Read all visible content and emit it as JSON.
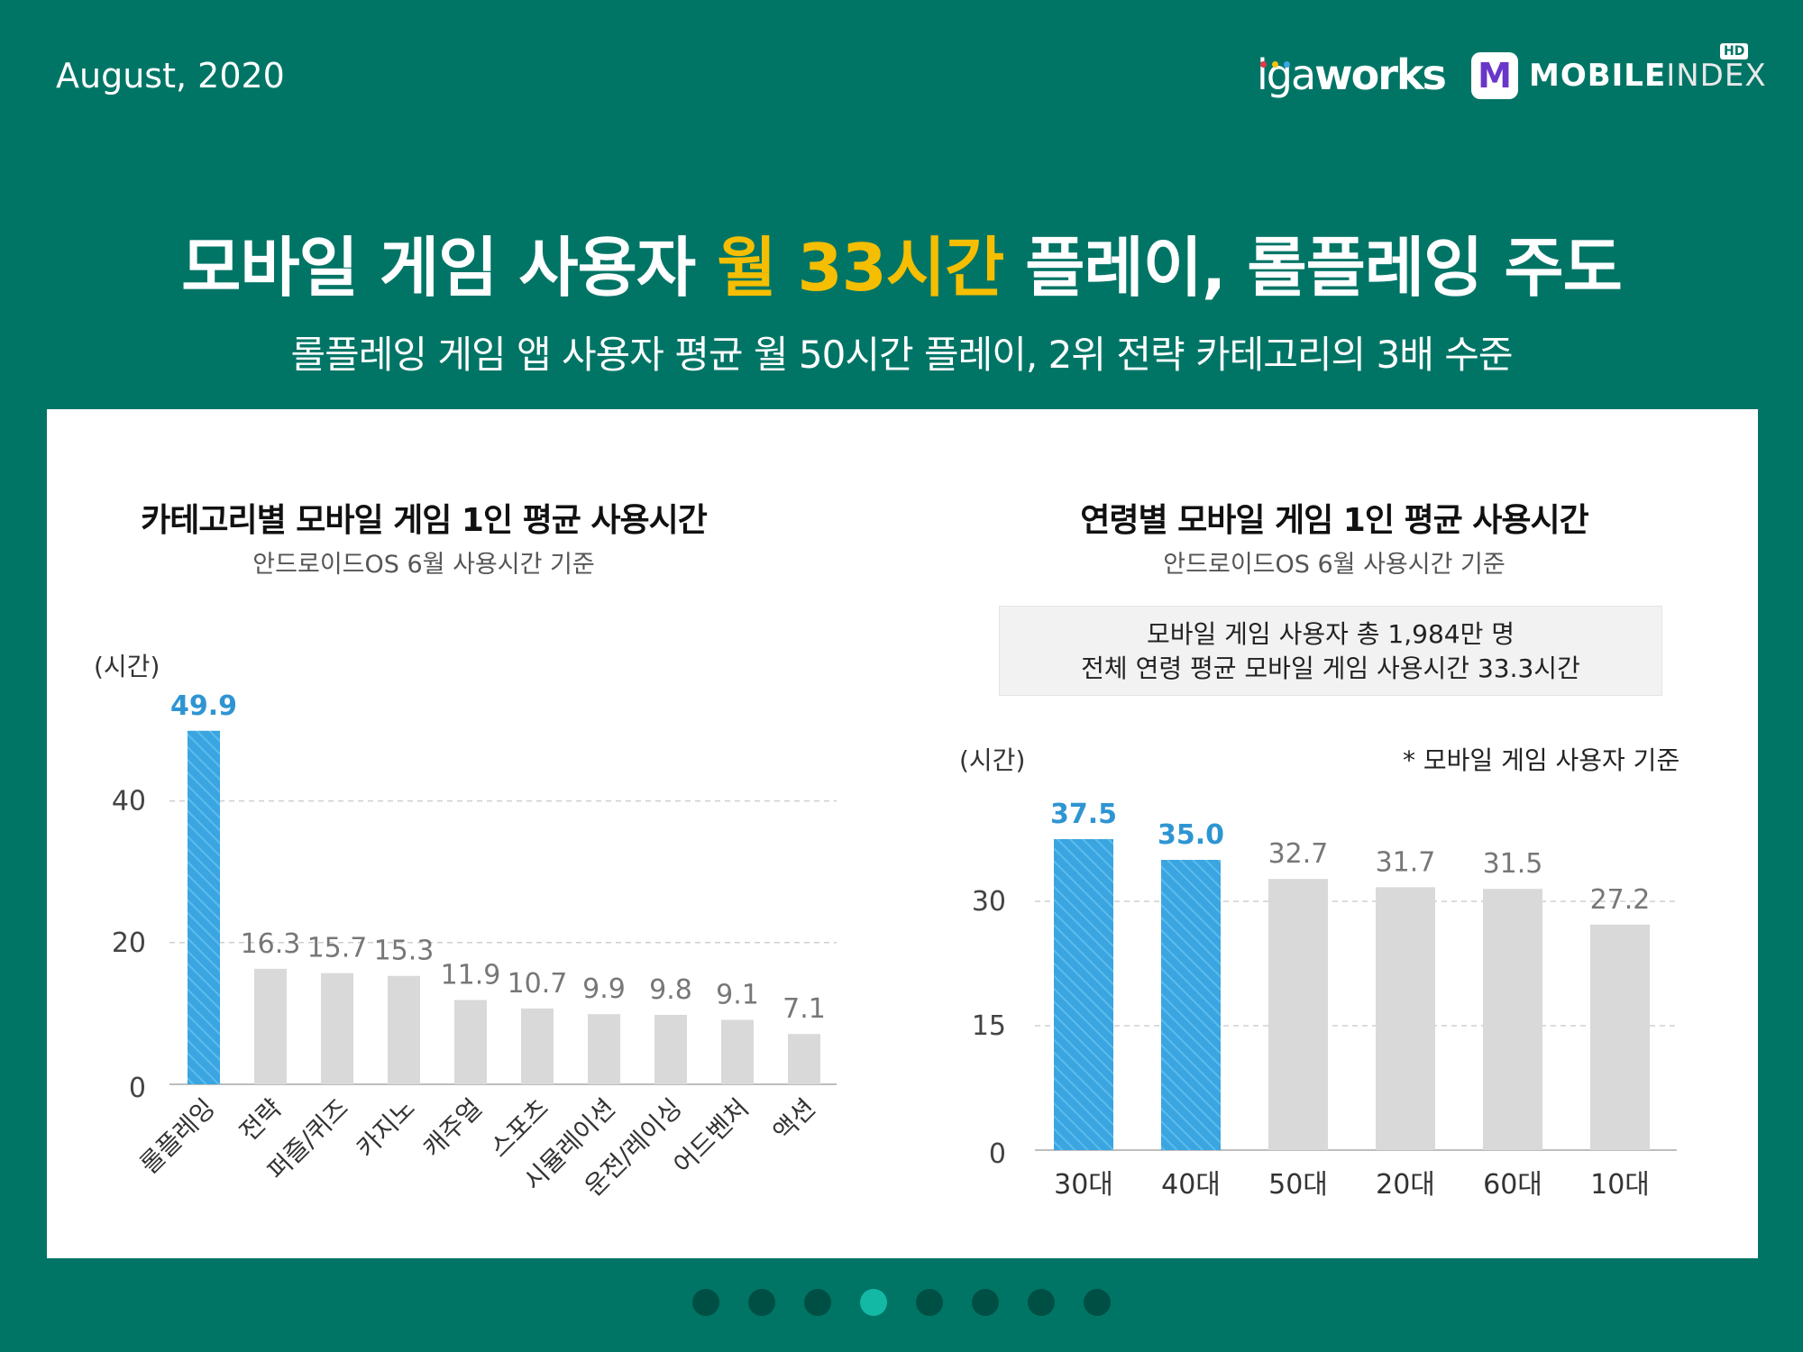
{
  "header": {
    "date": "August, 2020",
    "logo_iga_prefix": "iga",
    "logo_iga_bold": "works",
    "logo_mobile": "MOBILE",
    "logo_index": "INDEX",
    "logo_hd": "HD",
    "logo_m": "M"
  },
  "headline": {
    "title_pre": "모바일 게임 사용자 ",
    "title_highlight": "월 33시간",
    "title_post": " 플레이, 롤플레잉 주도",
    "subtitle": "롤플레잉 게임 앱 사용자 평균 월 50시간 플레이, 2위 전략 카테고리의 3배 수준"
  },
  "colors": {
    "background": "#007566",
    "highlight": "#f6be00",
    "bar_highlight": "#3aa5e0",
    "bar_default": "#d9d9d9"
  },
  "info_box": {
    "line1": "모바일 게임 사용자 총 1,984만 명",
    "line2": "전체 연령 평균 모바일 게임 사용시간 33.3시간"
  },
  "pager": {
    "count": 8,
    "active_index": 3
  },
  "chart_data": [
    {
      "type": "bar",
      "title": "카테고리별 모바일 게임 1인 평균 사용시간",
      "subtitle": "안드로이드OS 6월 사용시간 기준",
      "ylabel": "(시간)",
      "categories": [
        "롤플레잉",
        "전략",
        "퍼즐/퀴즈",
        "카지노",
        "캐주얼",
        "스포츠",
        "시뮬레이션",
        "운전/레이싱",
        "어드벤처",
        "액션"
      ],
      "values": [
        49.9,
        16.3,
        15.7,
        15.3,
        11.9,
        10.7,
        9.9,
        9.8,
        9.1,
        7.1
      ],
      "value_labels": [
        "49.9",
        "16.3",
        "15.7",
        "15.3",
        "11.9",
        "10.7",
        "9.9",
        "9.8",
        "9.1",
        "7.1"
      ],
      "highlight": [
        0
      ],
      "yticks": [
        0,
        20,
        40
      ],
      "ylim": [
        0,
        50
      ],
      "grid": true
    },
    {
      "type": "bar",
      "title": "연령별 모바일 게임 1인 평균 사용시간",
      "subtitle": "안드로이드OS 6월 사용시간 기준",
      "ylabel": "(시간)",
      "note": "* 모바일 게임 사용자 기준",
      "categories": [
        "30대",
        "40대",
        "50대",
        "20대",
        "60대",
        "10대"
      ],
      "values": [
        37.5,
        35.0,
        32.7,
        31.7,
        31.5,
        27.2
      ],
      "value_labels": [
        "37.5",
        "35.0",
        "32.7",
        "31.7",
        "31.5",
        "27.2"
      ],
      "highlight": [
        0,
        1
      ],
      "yticks": [
        0,
        15,
        30
      ],
      "ylim": [
        0,
        40
      ],
      "grid": true
    }
  ]
}
